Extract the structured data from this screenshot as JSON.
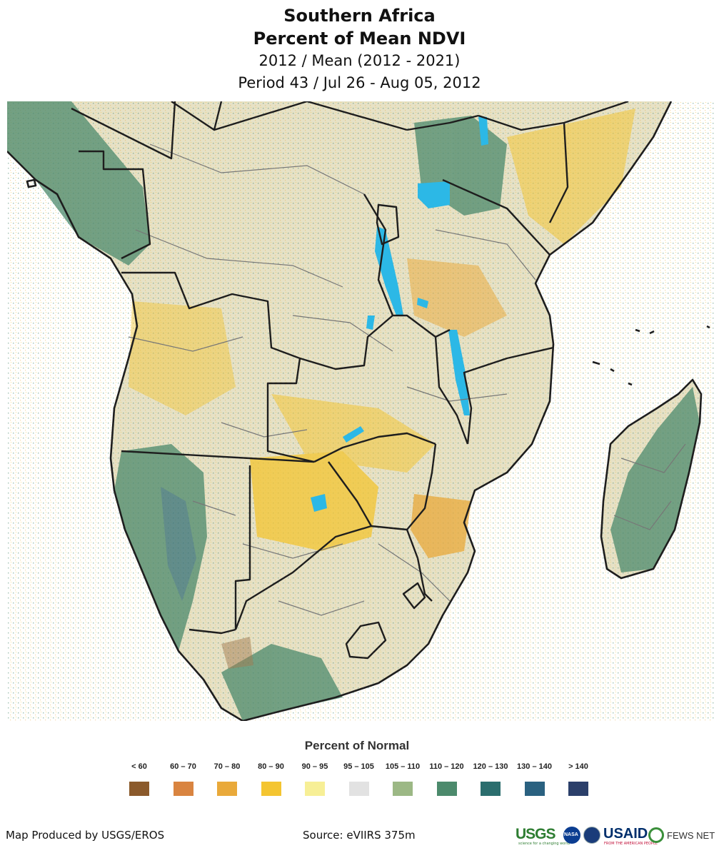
{
  "header": {
    "title": "Southern Africa",
    "subtitle": "Percent of Mean NDVI",
    "comparison": "2012 / Mean (2012 - 2021)",
    "period": "Period 43 / Jul 26 - Aug 05, 2012"
  },
  "legend": {
    "title": "Percent of Normal",
    "items": [
      {
        "label": "< 60",
        "color": "#8b5a2b"
      },
      {
        "label": "60 – 70",
        "color": "#d98440"
      },
      {
        "label": "70 – 80",
        "color": "#e9a93a"
      },
      {
        "label": "80 – 90",
        "color": "#f4c531"
      },
      {
        "label": "90 – 95",
        "color": "#f7ef96"
      },
      {
        "label": "95 – 105",
        "color": "#e2e2e2"
      },
      {
        "label": "105 – 110",
        "color": "#9cb885"
      },
      {
        "label": "110 – 120",
        "color": "#4c8a6c"
      },
      {
        "label": "120 – 130",
        "color": "#2b6e6e"
      },
      {
        "label": "130 – 140",
        "color": "#2a6180"
      },
      {
        "label": "> 140",
        "color": "#2b3f6a"
      }
    ]
  },
  "map": {
    "water_color": "#2cb8e6",
    "land_base_color": "#e6e1c6",
    "border_color": "#1e1e1e",
    "admin_border_color": "#777777"
  },
  "footer": {
    "producer": "Map Produced by USGS/EROS",
    "source": "Source: eVIIRS 375m",
    "logos": {
      "usgs": "USGS",
      "usgs_tagline": "science for a changing world",
      "nasa": "NASA",
      "usaid": "USAID",
      "usaid_tagline": "FROM THE AMERICAN PEOPLE",
      "fews": "FEWS NET"
    }
  }
}
